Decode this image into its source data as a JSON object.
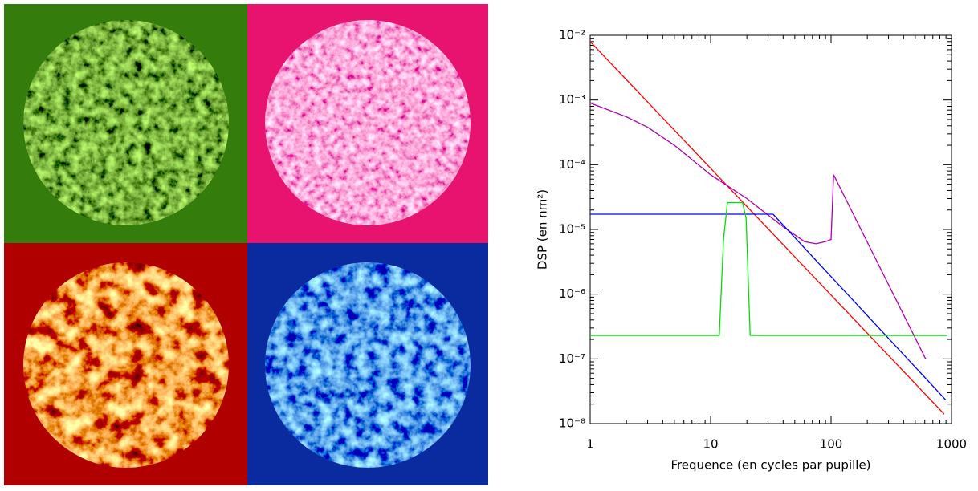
{
  "chart_data": {
    "type": "line",
    "xlabel": "Frequence (en cycles par pupille)",
    "ylabel": "DSP (en nm²)",
    "xscale": "log",
    "yscale": "log",
    "xlim": [
      1,
      1000
    ],
    "ylim": [
      1e-08,
      0.01
    ],
    "xticks": [
      1,
      10,
      100,
      1000
    ],
    "yticks": [
      {
        "value": 1e-08,
        "label": "10⁻⁸"
      },
      {
        "value": 1e-07,
        "label": "10⁻⁷"
      },
      {
        "value": 1e-06,
        "label": "10⁻⁶"
      },
      {
        "value": 1e-05,
        "label": "10⁻⁵"
      },
      {
        "value": 0.0001,
        "label": "10⁻⁴"
      },
      {
        "value": 0.001,
        "label": "10⁻³"
      },
      {
        "value": 0.01,
        "label": "10⁻²"
      }
    ],
    "series": [
      {
        "color": "#ff0000",
        "x": [
          1,
          870
        ],
        "values": [
          0.008,
          1.4e-08
        ]
      },
      {
        "color": "#b000b0",
        "x": [
          1,
          2,
          3,
          5,
          10,
          20,
          40,
          60,
          75,
          90,
          100,
          105,
          610
        ],
        "values": [
          0.0009,
          0.00055,
          0.00038,
          0.0002,
          7e-05,
          3e-05,
          1.1e-05,
          6.5e-06,
          6e-06,
          6.5e-06,
          7e-06,
          7e-05,
          1e-07
        ]
      },
      {
        "color": "#0000ff",
        "x": [
          1,
          33,
          900
        ],
        "values": [
          1.72e-05,
          1.72e-05,
          2.3e-08
        ]
      },
      {
        "color": "#00e000",
        "x": [
          1,
          11.8,
          12.8,
          13.8,
          18.4,
          19.7,
          21.3,
          925
        ],
        "values": [
          2.3e-07,
          2.3e-07,
          7e-06,
          2.6e-05,
          2.6e-05,
          1.5e-05,
          2.3e-07,
          2.3e-07
        ]
      }
    ]
  }
}
